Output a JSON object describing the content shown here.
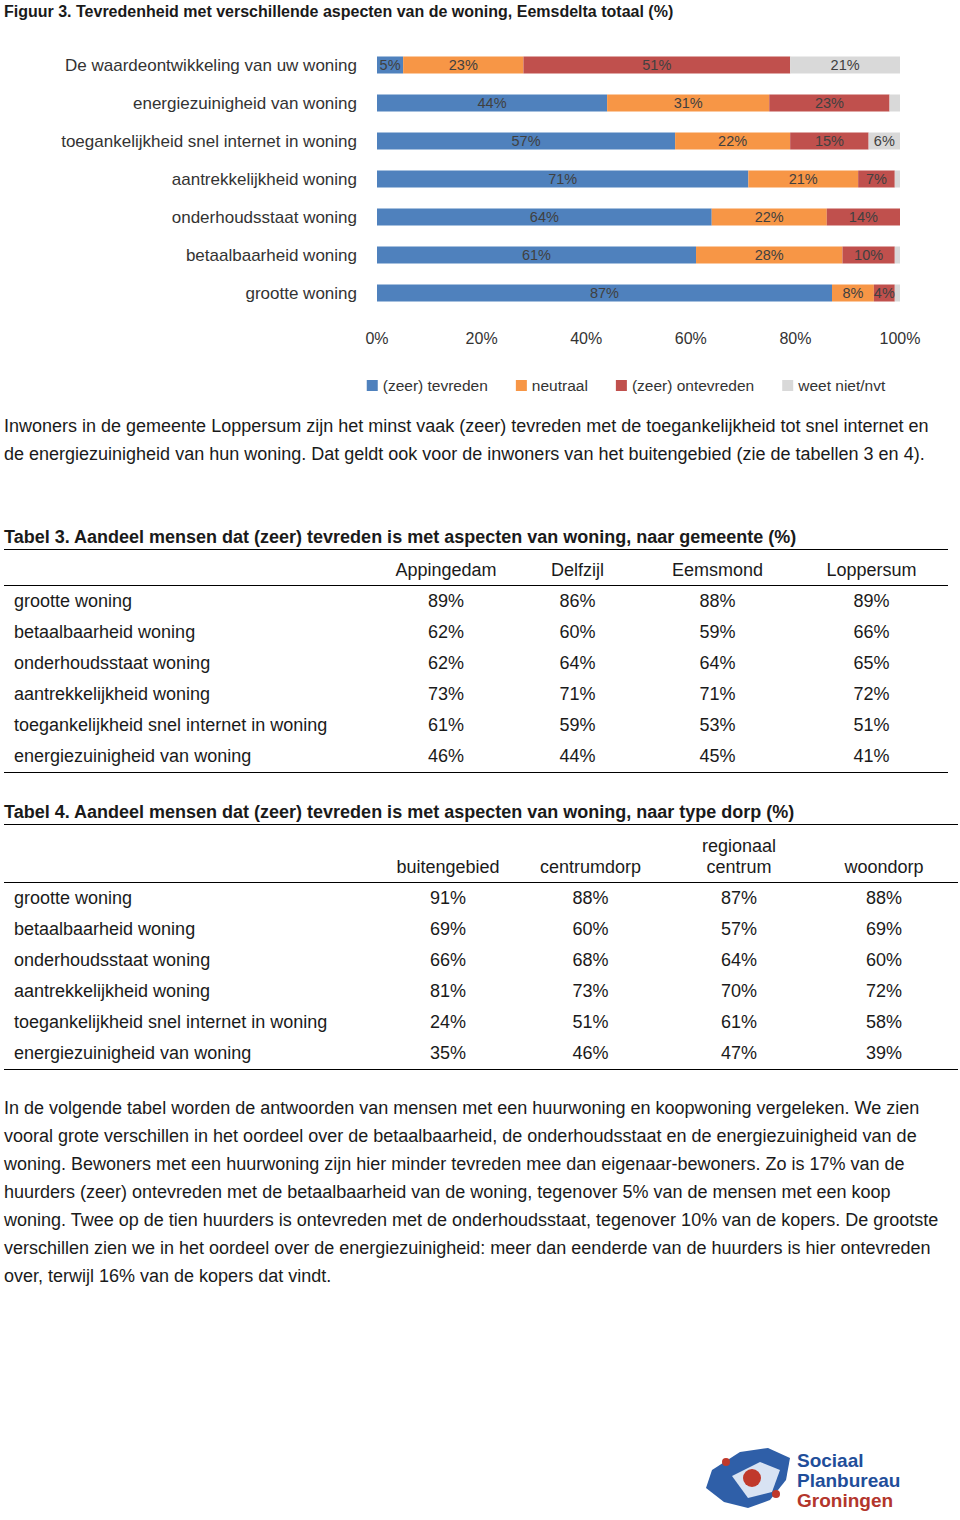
{
  "chart_data": {
    "type": "bar",
    "orientation": "horizontal",
    "stacked": true,
    "data_labels": true,
    "grid": false,
    "legend": "bottom",
    "title": "Figuur 3. Tevredenheid met verschillende aspecten van de woning, Eemsdelta totaal (%)",
    "categories": [
      "De waardeontwikkeling van uw woning",
      "energiezuinigheid van woning",
      "toegankelijkheid snel internet in woning",
      "aantrekkelijkheid woning",
      "onderhoudsstaat woning",
      "betaalbaarheid woning",
      "grootte woning"
    ],
    "series": [
      {
        "name": "(zeer) tevreden",
        "color": "#4f81bd",
        "values": [
          5,
          44,
          57,
          71,
          64,
          61,
          87
        ],
        "value_labels": [
          "5%",
          "44%",
          "57%",
          "71%",
          "64%",
          "61%",
          "87%"
        ]
      },
      {
        "name": "neutraal",
        "color": "#f79646",
        "values": [
          23,
          31,
          22,
          21,
          22,
          28,
          8
        ],
        "value_labels": [
          "23%",
          "31%",
          "22%",
          "21%",
          "22%",
          "28%",
          "8%"
        ]
      },
      {
        "name": "(zeer) ontevreden",
        "color": "#c0504d",
        "values": [
          51,
          23,
          15,
          7,
          14,
          10,
          4
        ],
        "value_labels": [
          "51%",
          "23%",
          "15%",
          "7%",
          "14%",
          "10%",
          "4%"
        ]
      },
      {
        "name": "weet niet/nvt",
        "color": "#d9d9d9",
        "values": [
          21,
          2,
          6,
          1,
          0,
          1,
          1
        ],
        "value_labels": [
          "21%",
          null,
          "6%",
          null,
          null,
          null,
          null
        ]
      }
    ],
    "xlim": [
      0,
      100
    ],
    "xticks": [
      {
        "value": 0,
        "label": "0%"
      },
      {
        "value": 20,
        "label": "20%"
      },
      {
        "value": 40,
        "label": "40%"
      },
      {
        "value": 60,
        "label": "60%"
      },
      {
        "value": 80,
        "label": "80%"
      },
      {
        "value": 100,
        "label": "100%"
      }
    ]
  },
  "paragraphs": [
    "Inwoners in de gemeente Loppersum zijn het minst vaak (zeer) tevreden met de toegankelijkheid tot snel internet en de energiezuinigheid van hun woning. Dat geldt ook voor de inwoners van het buitengebied (zie de tabellen 3 en 4).",
    "In de volgende tabel worden de antwoorden van mensen met een huurwoning en koopwoning vergeleken. We zien vooral grote verschillen in het oordeel over de betaalbaarheid, de onderhoudsstaat en de energiezuinigheid van de woning. Bewoners met een huurwoning zijn hier minder tevreden mee dan eigenaar-bewoners. Zo is 17% van de huurders (zeer) ontevreden met de betaalbaarheid van de woning, tegenover 5% van de mensen met een koop woning. Twee op de tien huurders is ontevreden met de onderhoudsstaat, tegenover 10% van de kopers. De grootste verschillen zien we in het oordeel over de energiezuinigheid: meer dan eenderde van de huurders is hier ontevreden over, terwijl 16% van de kopers dat vindt."
  ],
  "tables": [
    {
      "title": "Tabel 3. Aandeel mensen dat (zeer) tevreden is met aspecten van woning, naar gemeente (%)",
      "columns": [
        "Appingedam",
        "Delfzijl",
        "Eemsmond",
        "Loppersum"
      ],
      "rows": [
        [
          "grootte woning",
          "89%",
          "86%",
          "88%",
          "89%"
        ],
        [
          "betaalbaarheid woning",
          "62%",
          "60%",
          "59%",
          "66%"
        ],
        [
          "onderhoudsstaat woning",
          "62%",
          "64%",
          "64%",
          "65%"
        ],
        [
          "aantrekkelijkheid woning",
          "73%",
          "71%",
          "71%",
          "72%"
        ],
        [
          "toegankelijkheid snel internet in woning",
          "61%",
          "59%",
          "53%",
          "51%"
        ],
        [
          "energiezuinigheid van woning",
          "46%",
          "44%",
          "45%",
          "41%"
        ]
      ]
    },
    {
      "title": "Tabel 4. Aandeel mensen dat (zeer) tevreden is met aspecten van woning, naar type dorp (%)",
      "columns": [
        "buitengebied",
        "centrumdorp",
        "regionaal centrum",
        "woondorp"
      ],
      "rows": [
        [
          "grootte woning",
          "91%",
          "88%",
          "87%",
          "88%"
        ],
        [
          "betaalbaarheid woning",
          "69%",
          "60%",
          "57%",
          "69%"
        ],
        [
          "onderhoudsstaat woning",
          "66%",
          "68%",
          "64%",
          "60%"
        ],
        [
          "aantrekkelijkheid woning",
          "81%",
          "73%",
          "70%",
          "72%"
        ],
        [
          "toegankelijkheid snel internet in woning",
          "24%",
          "51%",
          "61%",
          "58%"
        ],
        [
          "energiezuinigheid van woning",
          "35%",
          "46%",
          "47%",
          "39%"
        ]
      ]
    }
  ],
  "logo": {
    "lines": [
      "Sociaal",
      "Planbureau",
      "Groningen"
    ]
  }
}
